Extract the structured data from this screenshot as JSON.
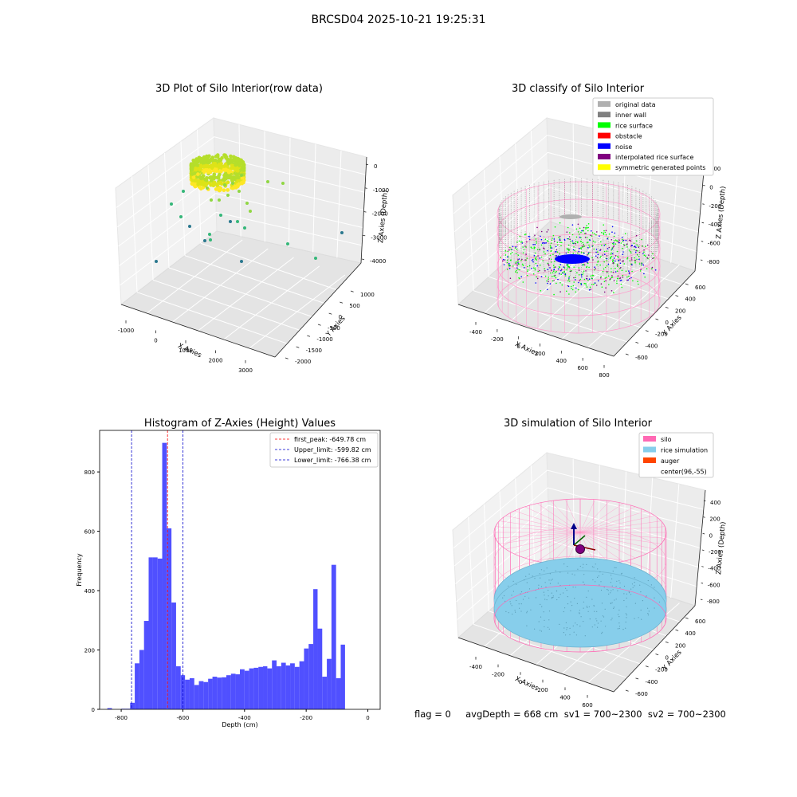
{
  "suptitle": "BRCSD04 2025-10-21 19:25:31",
  "footer": "flag = 0     avgDepth = 668 cm  sv1 = 700~2300  sv2 = 700~2300",
  "chart_data": [
    {
      "type": "scatter",
      "title": "3D Plot of Silo Interior(row data)",
      "xlabel": "X Axies",
      "ylabel": "Y Axies",
      "zlabel": "Z Axies (Depth)",
      "x_ticks": [
        "-1000",
        "0",
        "1000",
        "2000",
        "3000"
      ],
      "y_ticks": [
        "1000",
        "500",
        "0",
        "-500",
        "-1000",
        "-1500",
        "-2000"
      ],
      "z_ticks": [
        "0",
        "-1000",
        "-2000",
        "-3000",
        "-4000"
      ],
      "description_points": "dense ring of points near the silo top plus scattered outliers"
    },
    {
      "type": "scatter",
      "title": "3D classify of Silo Interior",
      "xlabel": "X Axies",
      "ylabel": "Y Axies",
      "zlabel": "Z Axies (Depth)",
      "x_ticks": [
        "-400",
        "-200",
        "0",
        "200",
        "400",
        "600",
        "800"
      ],
      "y_ticks": [
        "600",
        "400",
        "200",
        "0",
        "-200",
        "-400",
        "-600"
      ],
      "z_ticks": [
        "200",
        "0",
        "-200",
        "-400",
        "-600",
        "-800"
      ],
      "legend": [
        {
          "name": "original data",
          "color": "#b0b0b0"
        },
        {
          "name": "inner wall",
          "color": "#808080"
        },
        {
          "name": "rice surface",
          "color": "#00ff00"
        },
        {
          "name": "obstacle",
          "color": "#ff0000"
        },
        {
          "name": "noise",
          "color": "#0000ff"
        },
        {
          "name": "interpolated rice surface",
          "color": "#800080"
        },
        {
          "name": "symmetric generated points",
          "color": "#ffff00"
        }
      ],
      "legend_position": "top-right"
    },
    {
      "type": "bar",
      "title": "Histogram of Z-Axies (Height) Values",
      "xlabel": "Depth (cm)",
      "ylabel": "Frequency",
      "xlim": [
        -870,
        40
      ],
      "ylim": [
        0,
        940
      ],
      "x_ticks": [
        -800,
        -600,
        -400,
        -200,
        0
      ],
      "y_ticks": [
        0,
        200,
        400,
        600,
        800
      ],
      "bar_color": "#5050ff",
      "bins": [
        [
          -845,
          -830,
          4
        ],
        [
          -830,
          -815,
          0
        ],
        [
          -815,
          -800,
          0
        ],
        [
          -800,
          -785,
          2
        ],
        [
          -785,
          -771,
          2
        ],
        [
          -771,
          -756,
          22
        ],
        [
          -756,
          -741,
          155
        ],
        [
          -741,
          -726,
          200
        ],
        [
          -726,
          -711,
          298
        ],
        [
          -711,
          -697,
          512
        ],
        [
          -697,
          -682,
          512
        ],
        [
          -682,
          -667,
          508
        ],
        [
          -667,
          -652,
          898
        ],
        [
          -652,
          -637,
          610
        ],
        [
          -637,
          -622,
          360
        ],
        [
          -622,
          -607,
          145
        ],
        [
          -607,
          -593,
          115
        ],
        [
          -593,
          -578,
          100
        ],
        [
          -578,
          -563,
          105
        ],
        [
          -563,
          -548,
          82
        ],
        [
          -548,
          -533,
          95
        ],
        [
          -533,
          -518,
          92
        ],
        [
          -518,
          -504,
          103
        ],
        [
          -504,
          -489,
          110
        ],
        [
          -489,
          -474,
          107
        ],
        [
          -474,
          -459,
          108
        ],
        [
          -459,
          -444,
          115
        ],
        [
          -444,
          -429,
          120
        ],
        [
          -429,
          -415,
          118
        ],
        [
          -415,
          -400,
          135
        ],
        [
          -400,
          -385,
          130
        ],
        [
          -385,
          -370,
          138
        ],
        [
          -370,
          -355,
          140
        ],
        [
          -355,
          -340,
          143
        ],
        [
          -340,
          -326,
          145
        ],
        [
          -326,
          -311,
          138
        ],
        [
          -311,
          -296,
          165
        ],
        [
          -296,
          -281,
          145
        ],
        [
          -281,
          -266,
          157
        ],
        [
          -266,
          -252,
          148
        ],
        [
          -252,
          -237,
          155
        ],
        [
          -237,
          -222,
          143
        ],
        [
          -222,
          -207,
          162
        ],
        [
          -207,
          -192,
          205
        ],
        [
          -192,
          -177,
          220
        ],
        [
          -177,
          -163,
          405
        ],
        [
          -163,
          -148,
          272
        ],
        [
          -148,
          -133,
          110
        ],
        [
          -133,
          -118,
          170
        ],
        [
          -118,
          -103,
          487
        ],
        [
          -103,
          -88,
          105
        ],
        [
          -88,
          -74,
          218
        ]
      ],
      "vlines": [
        {
          "label": "first_peak: -649.78 cm",
          "x": -649.78,
          "color": "#ff0000"
        },
        {
          "label": "Upper_limit: -599.82 cm",
          "x": -599.82,
          "color": "#0000cc"
        },
        {
          "label": "Lower_limit: -766.38 cm",
          "x": -766.38,
          "color": "#0000cc"
        }
      ],
      "legend_position": "top-right"
    },
    {
      "type": "scatter",
      "title": "3D simulation of Silo Interior",
      "xlabel": "X Axies",
      "ylabel": "Y Axies",
      "zlabel": "Z Axies (Depth)",
      "x_ticks": [
        "-400",
        "-200",
        "0",
        "200",
        "400",
        "600"
      ],
      "y_ticks": [
        "600",
        "400",
        "200",
        "0",
        "-200",
        "-400",
        "-600"
      ],
      "z_ticks": [
        "400",
        "200",
        "0",
        "-200",
        "-400",
        "-600",
        "-800"
      ],
      "legend": [
        {
          "name": "silo",
          "color": "#ff69b4"
        },
        {
          "name": "rice simulation",
          "color": "#87ceeb"
        },
        {
          "name": "auger",
          "color": "#ff4500"
        },
        {
          "name": "center(96,-55)",
          "color": ""
        }
      ],
      "legend_position": "top-right"
    }
  ]
}
